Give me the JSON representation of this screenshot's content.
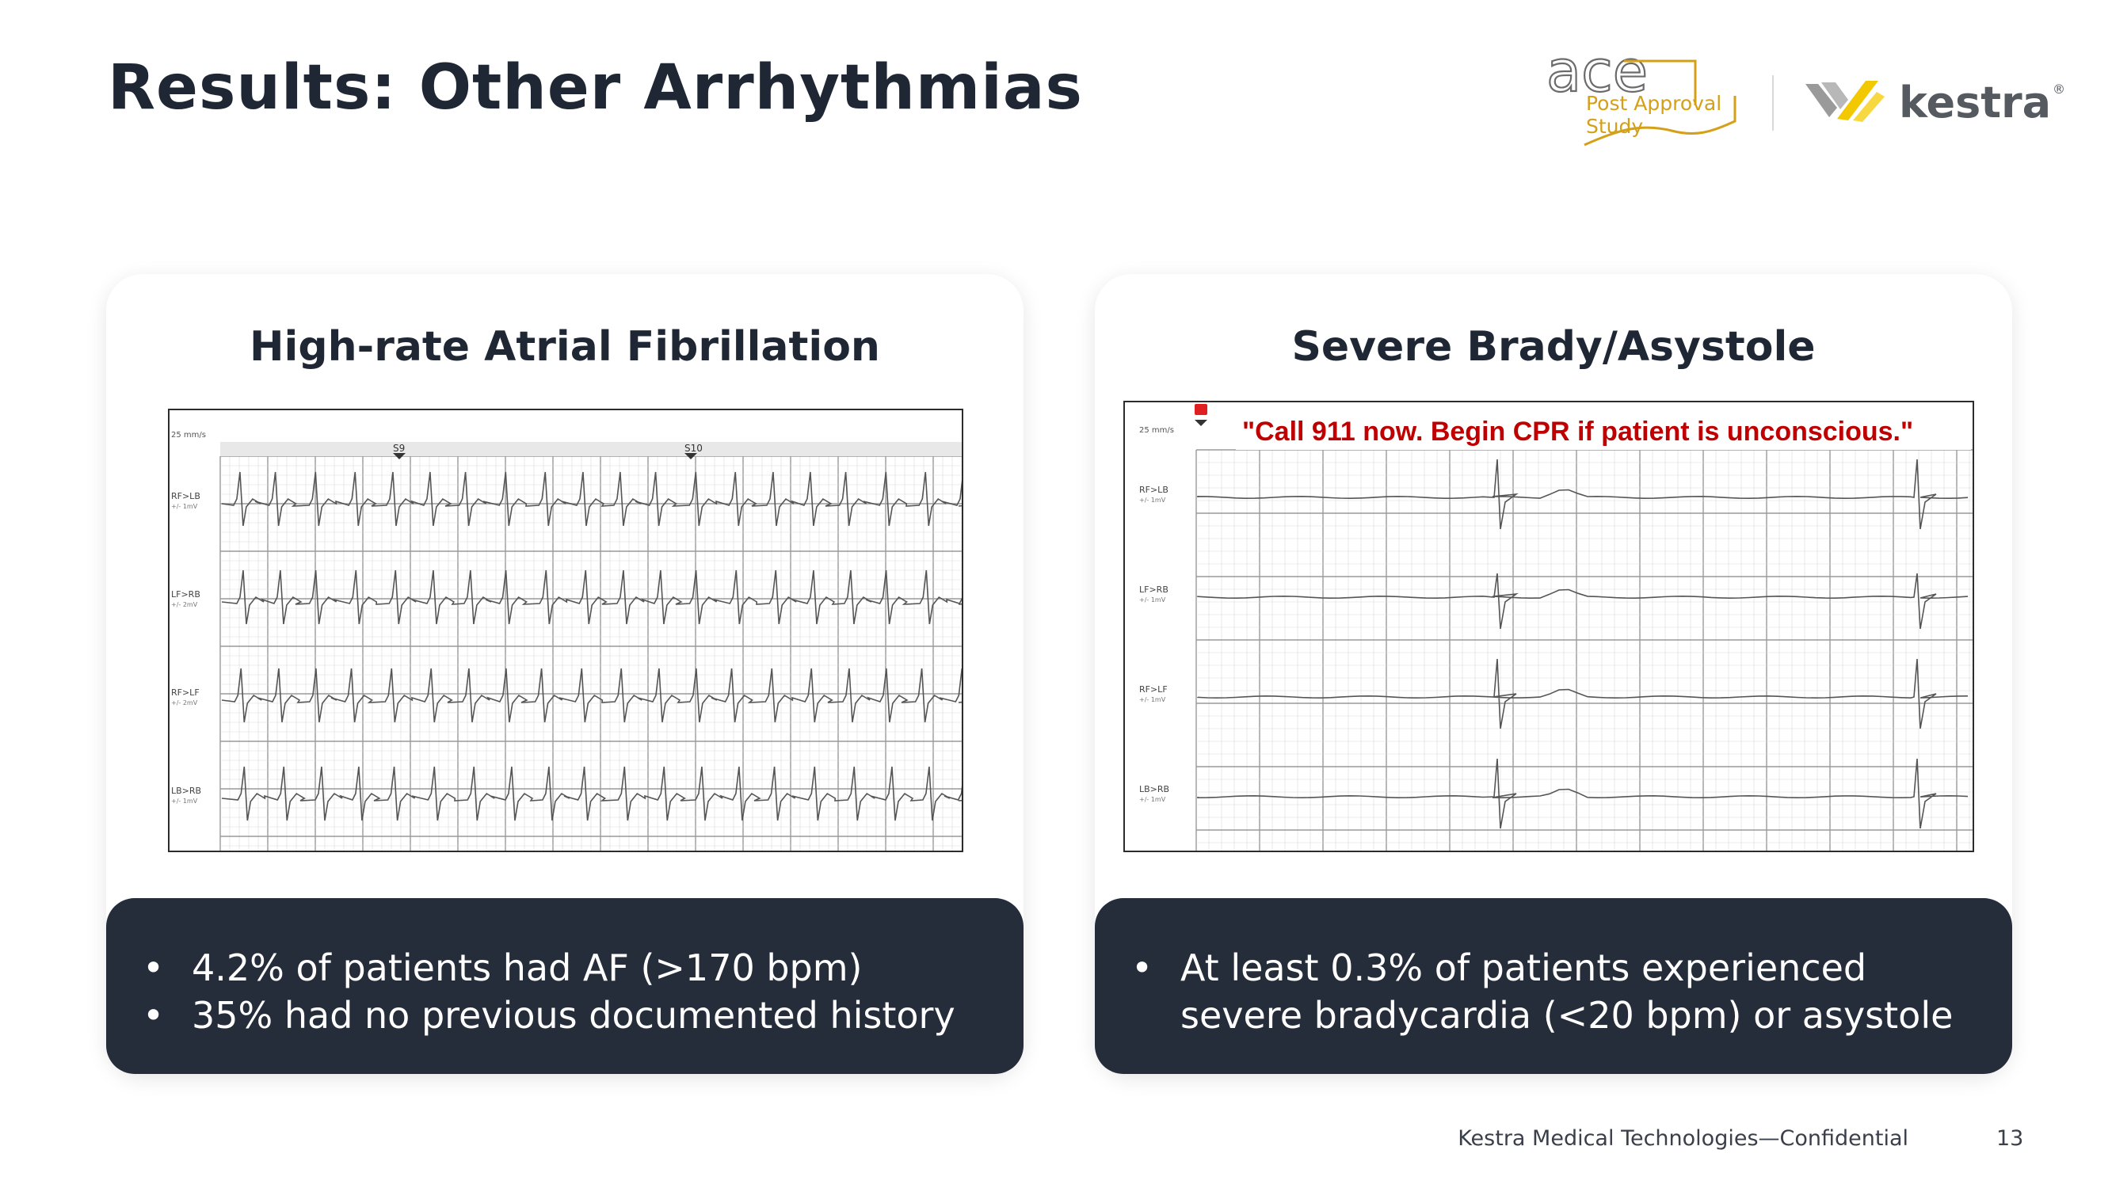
{
  "slide": {
    "title": "Results: Other Arrhythmias",
    "footer": "Kestra Medical Technologies—Confidential",
    "page_number": "13"
  },
  "logos": {
    "ace_wordmark": "ace",
    "ace_line1": "Post Approval",
    "ace_line2": "Study",
    "kestra_wordmark": "kestra",
    "registered_mark": "®",
    "ace_color": "#d4a017",
    "kestra_yellow": "#f2c800"
  },
  "cards": [
    {
      "heading": "High-rate Atrial Fibrillation",
      "strip": {
        "speed": "25 mm/s",
        "markers": [
          "S9",
          "S10"
        ],
        "leads": [
          {
            "name": "RF>LB",
            "gain": "+/- 1mV"
          },
          {
            "name": "LF>RB",
            "gain": "+/- 2mV"
          },
          {
            "name": "RF>LF",
            "gain": "+/- 2mV"
          },
          {
            "name": "LB>RB",
            "gain": "+/- 1mV"
          }
        ]
      },
      "bullets": [
        "4.2% of patients had AF (>170 bpm)",
        "35% had no previous documented history"
      ]
    },
    {
      "heading": "Severe Brady/Asystole",
      "strip": {
        "speed": "25 mm/s",
        "alert": "\"Call 911 now. Begin CPR if patient is unconscious.\"",
        "leads": [
          {
            "name": "RF>LB",
            "gain": "+/- 1mV"
          },
          {
            "name": "LF>RB",
            "gain": "+/- 1mV"
          },
          {
            "name": "RF>LF",
            "gain": "+/- 1mV"
          },
          {
            "name": "LB>RB",
            "gain": "+/- 1mV"
          }
        ]
      },
      "bullets": [
        "At least 0.3% of patients experienced severe bradycardia (<20 bpm) or asystole"
      ]
    }
  ]
}
